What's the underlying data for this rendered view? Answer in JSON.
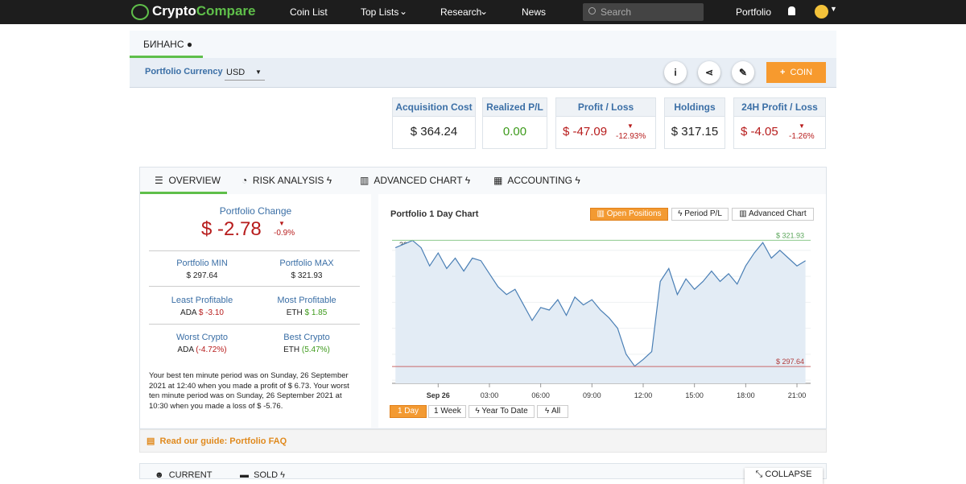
{
  "nav": {
    "logo_a": "Crypto",
    "logo_b": "Compare",
    "items": [
      "Coin List",
      "Top Lists",
      "Research",
      "News"
    ],
    "search": "Search",
    "portfolio": "Portfolio"
  },
  "portfolio_tab": "БИНАНС",
  "currency": {
    "label": "Portfolio Currency",
    "value": "USD"
  },
  "add_button": "COIN",
  "stats": [
    {
      "label": "Acquisition Cost",
      "value": "$ 364.24"
    },
    {
      "label": "Realized P/L",
      "value": "0.00"
    },
    {
      "label": "Profit / Loss",
      "value": "$ -47.09",
      "change": "-12.93%"
    },
    {
      "label": "Holdings",
      "value": "$ 317.15"
    },
    {
      "label": "24H Profit / Loss",
      "value": "$ -4.05",
      "change": "-1.26%"
    }
  ],
  "tabs": [
    "OVERVIEW",
    "RISK ANALYSIS",
    "ADVANCED CHART",
    "ACCOUNTING"
  ],
  "overview": {
    "change_label": "Portfolio Change",
    "change_value": "$ -2.78",
    "change_pct": "-0.9%",
    "min_label": "Portfolio MIN",
    "min_value": "$ 297.64",
    "max_label": "Portfolio MAX",
    "max_value": "$ 321.93",
    "least_label": "Least Profitable",
    "least_coin": "ADA",
    "least_value": "$ -3.10",
    "most_label": "Most Profitable",
    "most_coin": "ETH",
    "most_value": "$ 1.85",
    "worst_label": "Worst Crypto",
    "worst_coin": "ADA",
    "worst_value": "(-4.72%)",
    "best_label": "Best Crypto",
    "best_coin": "ETH",
    "best_value": "(5.47%)",
    "summary": "Your best ten minute period was on Sunday, 26 September 2021 at 12:40 when you made a profit of $ 6.73. Your worst ten minute period was on Sunday, 26 September 2021 at 10:30 when you made a loss of $ -5.76."
  },
  "chart": {
    "type": "line",
    "title": "Portfolio 1 Day Chart",
    "buttons": [
      "Open Positions",
      "Period P/L",
      "Advanced Chart"
    ],
    "ranges": [
      "1 Day",
      "1 Week",
      "Year To Date",
      "All"
    ],
    "color": "#4a7fb5",
    "x": [
      -2.5,
      -2,
      -1.5,
      -1,
      -0.5,
      0,
      0.5,
      1,
      1.5,
      2,
      2.5,
      3,
      3.5,
      4,
      4.5,
      5,
      5.5,
      6,
      6.5,
      7,
      7.5,
      8,
      8.5,
      9,
      9.5,
      10,
      10.5,
      11,
      11.5,
      12,
      12.5,
      13,
      13.5,
      14,
      14.5,
      15,
      15.5,
      16,
      16.5,
      17,
      17.5,
      18,
      18.5,
      19,
      19.5,
      20,
      20.5,
      21,
      21.5
    ],
    "values": [
      320.5,
      321.2,
      321.9,
      320.5,
      317,
      319.5,
      316.5,
      318.5,
      316,
      318.5,
      318,
      315.5,
      313,
      311.5,
      312.5,
      309.5,
      306.5,
      309,
      308.5,
      310.5,
      307.5,
      311,
      309.5,
      310.5,
      308.5,
      307,
      305,
      300,
      297.7,
      299,
      300.5,
      314,
      316.5,
      311.5,
      314.5,
      312.5,
      314,
      316,
      314,
      315.5,
      313.5,
      317,
      319.5,
      321.5,
      318.5,
      320,
      318.5,
      317,
      318
    ],
    "xlim": [
      -2.7,
      21.8
    ],
    "ylim": [
      294.4,
      322.3
    ],
    "yticks": [
      295,
      300,
      305,
      310,
      315,
      320
    ],
    "xticks": [
      {
        "value": 0,
        "label": "Sep 26"
      },
      {
        "value": 3,
        "label": "03:00"
      },
      {
        "value": 6,
        "label": "06:00"
      },
      {
        "value": 9,
        "label": "09:00"
      },
      {
        "value": 12,
        "label": "12:00"
      },
      {
        "value": 15,
        "label": "15:00"
      },
      {
        "value": 18,
        "label": "18:00"
      },
      {
        "value": 21,
        "label": "21:00"
      }
    ],
    "max_line": {
      "value": 321.93,
      "label": "$ 321.93"
    },
    "min_line": {
      "value": 297.64,
      "label": "$ 297.64"
    }
  },
  "guide": "Read our guide: Portfolio FAQ",
  "bottom_tabs": [
    "CURRENT",
    "SOLD"
  ],
  "collapse": "COLLAPSE"
}
